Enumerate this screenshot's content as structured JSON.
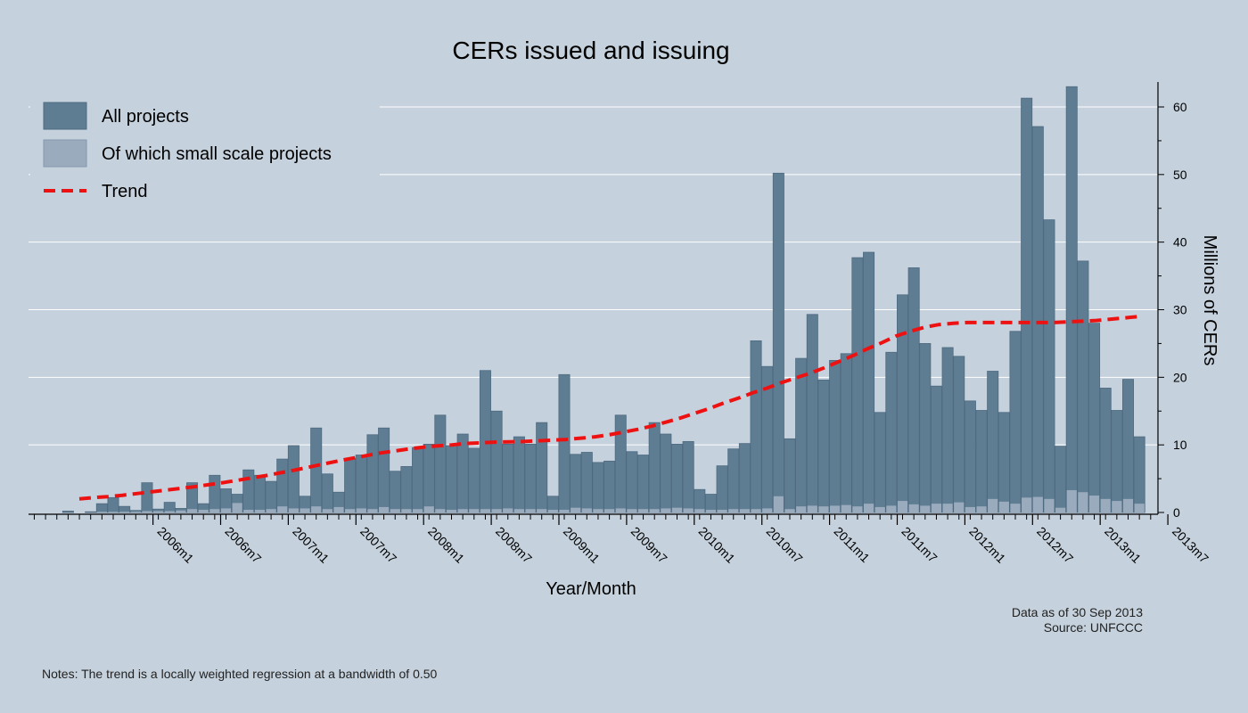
{
  "chart_data": {
    "type": "bar",
    "title": "CERs issued and issuing",
    "xlabel": "Year/Month",
    "ylabel": "Millions of CERs",
    "ylim": [
      0,
      63
    ],
    "yticks": [
      0,
      10,
      20,
      30,
      40,
      50,
      60
    ],
    "x_start": "2005m3",
    "xtick_labels": [
      "2006m1",
      "2006m7",
      "2007m1",
      "2007m7",
      "2008m1",
      "2008m7",
      "2009m1",
      "2009m7",
      "2010m1",
      "2010m7",
      "2011m1",
      "2011m7",
      "2012m1",
      "2012m7",
      "2013m1",
      "2013m7"
    ],
    "xtick_indices": [
      10,
      16,
      22,
      28,
      34,
      40,
      46,
      52,
      58,
      64,
      70,
      76,
      82,
      88,
      94,
      100
    ],
    "legend_position": "top-left",
    "series": [
      {
        "name": "All projects",
        "color": "#5f7d92",
        "values": [
          0,
          0,
          0.2,
          0,
          0.1,
          1.3,
          2.2,
          0.9,
          0.3,
          4.4,
          0.5,
          1.5,
          0.6,
          4.4,
          1.3,
          5.5,
          3.5,
          2.7,
          6.3,
          5.5,
          4.6,
          7.9,
          9.9,
          2.4,
          12.5,
          5.7,
          3.0,
          8.0,
          8.5,
          11.5,
          12.5,
          6.1,
          6.8,
          9.6,
          10.1,
          14.4,
          9.9,
          11.6,
          9.5,
          21.0,
          15.0,
          10.1,
          11.2,
          10.1,
          13.3,
          2.4,
          20.4,
          8.6,
          8.9,
          7.4,
          7.6,
          14.4,
          9.0,
          8.5,
          13.3,
          11.6,
          10.1,
          10.5,
          3.4,
          2.7,
          6.9,
          9.4,
          10.2,
          25.4,
          21.6,
          50.2,
          10.9,
          22.8,
          29.3,
          19.6,
          22.5,
          23.5,
          37.7,
          38.5,
          14.8,
          23.7,
          32.2,
          36.2,
          25.0,
          18.7,
          24.4,
          23.1,
          16.5,
          15.1,
          20.9,
          14.8,
          26.8,
          61.3,
          57.1,
          43.3,
          9.8,
          63.0,
          37.2,
          28.0,
          18.4,
          15.1,
          19.7,
          11.2
        ]
      },
      {
        "name": "Of which small scale projects",
        "color": "#9aabbd",
        "values": [
          0,
          0,
          0,
          0,
          0,
          0.1,
          0.1,
          0.1,
          0.1,
          0.2,
          0.2,
          0.2,
          0.3,
          0.5,
          0.4,
          0.5,
          0.6,
          1.4,
          0.4,
          0.4,
          0.5,
          0.9,
          0.6,
          0.6,
          0.9,
          0.5,
          0.8,
          0.5,
          0.6,
          0.5,
          0.8,
          0.5,
          0.5,
          0.5,
          0.9,
          0.5,
          0.4,
          0.5,
          0.5,
          0.5,
          0.5,
          0.6,
          0.5,
          0.5,
          0.5,
          0.4,
          0.4,
          0.7,
          0.6,
          0.5,
          0.5,
          0.6,
          0.5,
          0.5,
          0.5,
          0.6,
          0.7,
          0.6,
          0.5,
          0.4,
          0.4,
          0.5,
          0.5,
          0.5,
          0.6,
          2.4,
          0.5,
          0.9,
          1.0,
          0.9,
          1.0,
          1.1,
          0.9,
          1.3,
          0.8,
          1.0,
          1.7,
          1.2,
          1.0,
          1.3,
          1.3,
          1.5,
          0.8,
          0.9,
          2.0,
          1.6,
          1.3,
          2.2,
          2.3,
          2.0,
          0.7,
          3.3,
          3.0,
          2.5,
          2.0,
          1.7,
          2.0,
          1.3
        ]
      },
      {
        "name": "Trend",
        "color": "#ee1111",
        "style": "dashed",
        "values": [
          2.0,
          2.2,
          2.35,
          2.55,
          2.8,
          3.05,
          3.3,
          3.55,
          3.8,
          4.1,
          4.4,
          4.75,
          5.1,
          5.45,
          5.85,
          6.25,
          6.7,
          7.15,
          7.6,
          8.0,
          8.4,
          8.8,
          9.1,
          9.4,
          9.65,
          9.85,
          10.0,
          10.2,
          10.3,
          10.4,
          10.45,
          10.5,
          10.6,
          10.7,
          10.8,
          11.0,
          11.2,
          11.5,
          11.9,
          12.3,
          12.8,
          13.4,
          14.0,
          14.7,
          15.4,
          16.2,
          16.9,
          17.7,
          18.4,
          19.2,
          19.9,
          20.6,
          21.4,
          22.3,
          23.2,
          24.2,
          25.1,
          26.1,
          26.8,
          27.4,
          27.8,
          28.0,
          28.1,
          28.1,
          28.1,
          28.1,
          28.1,
          28.1,
          28.1,
          28.2,
          28.3,
          28.4,
          28.6,
          28.8,
          29.0
        ]
      }
    ],
    "trend_start_index": 3
  },
  "annotations": {
    "data_as_of": "Data as of 30 Sep 2013",
    "source": "Source: UNFCCC",
    "notes": "Notes: The trend is a locally weighted regression at a bandwidth of 0.50"
  }
}
